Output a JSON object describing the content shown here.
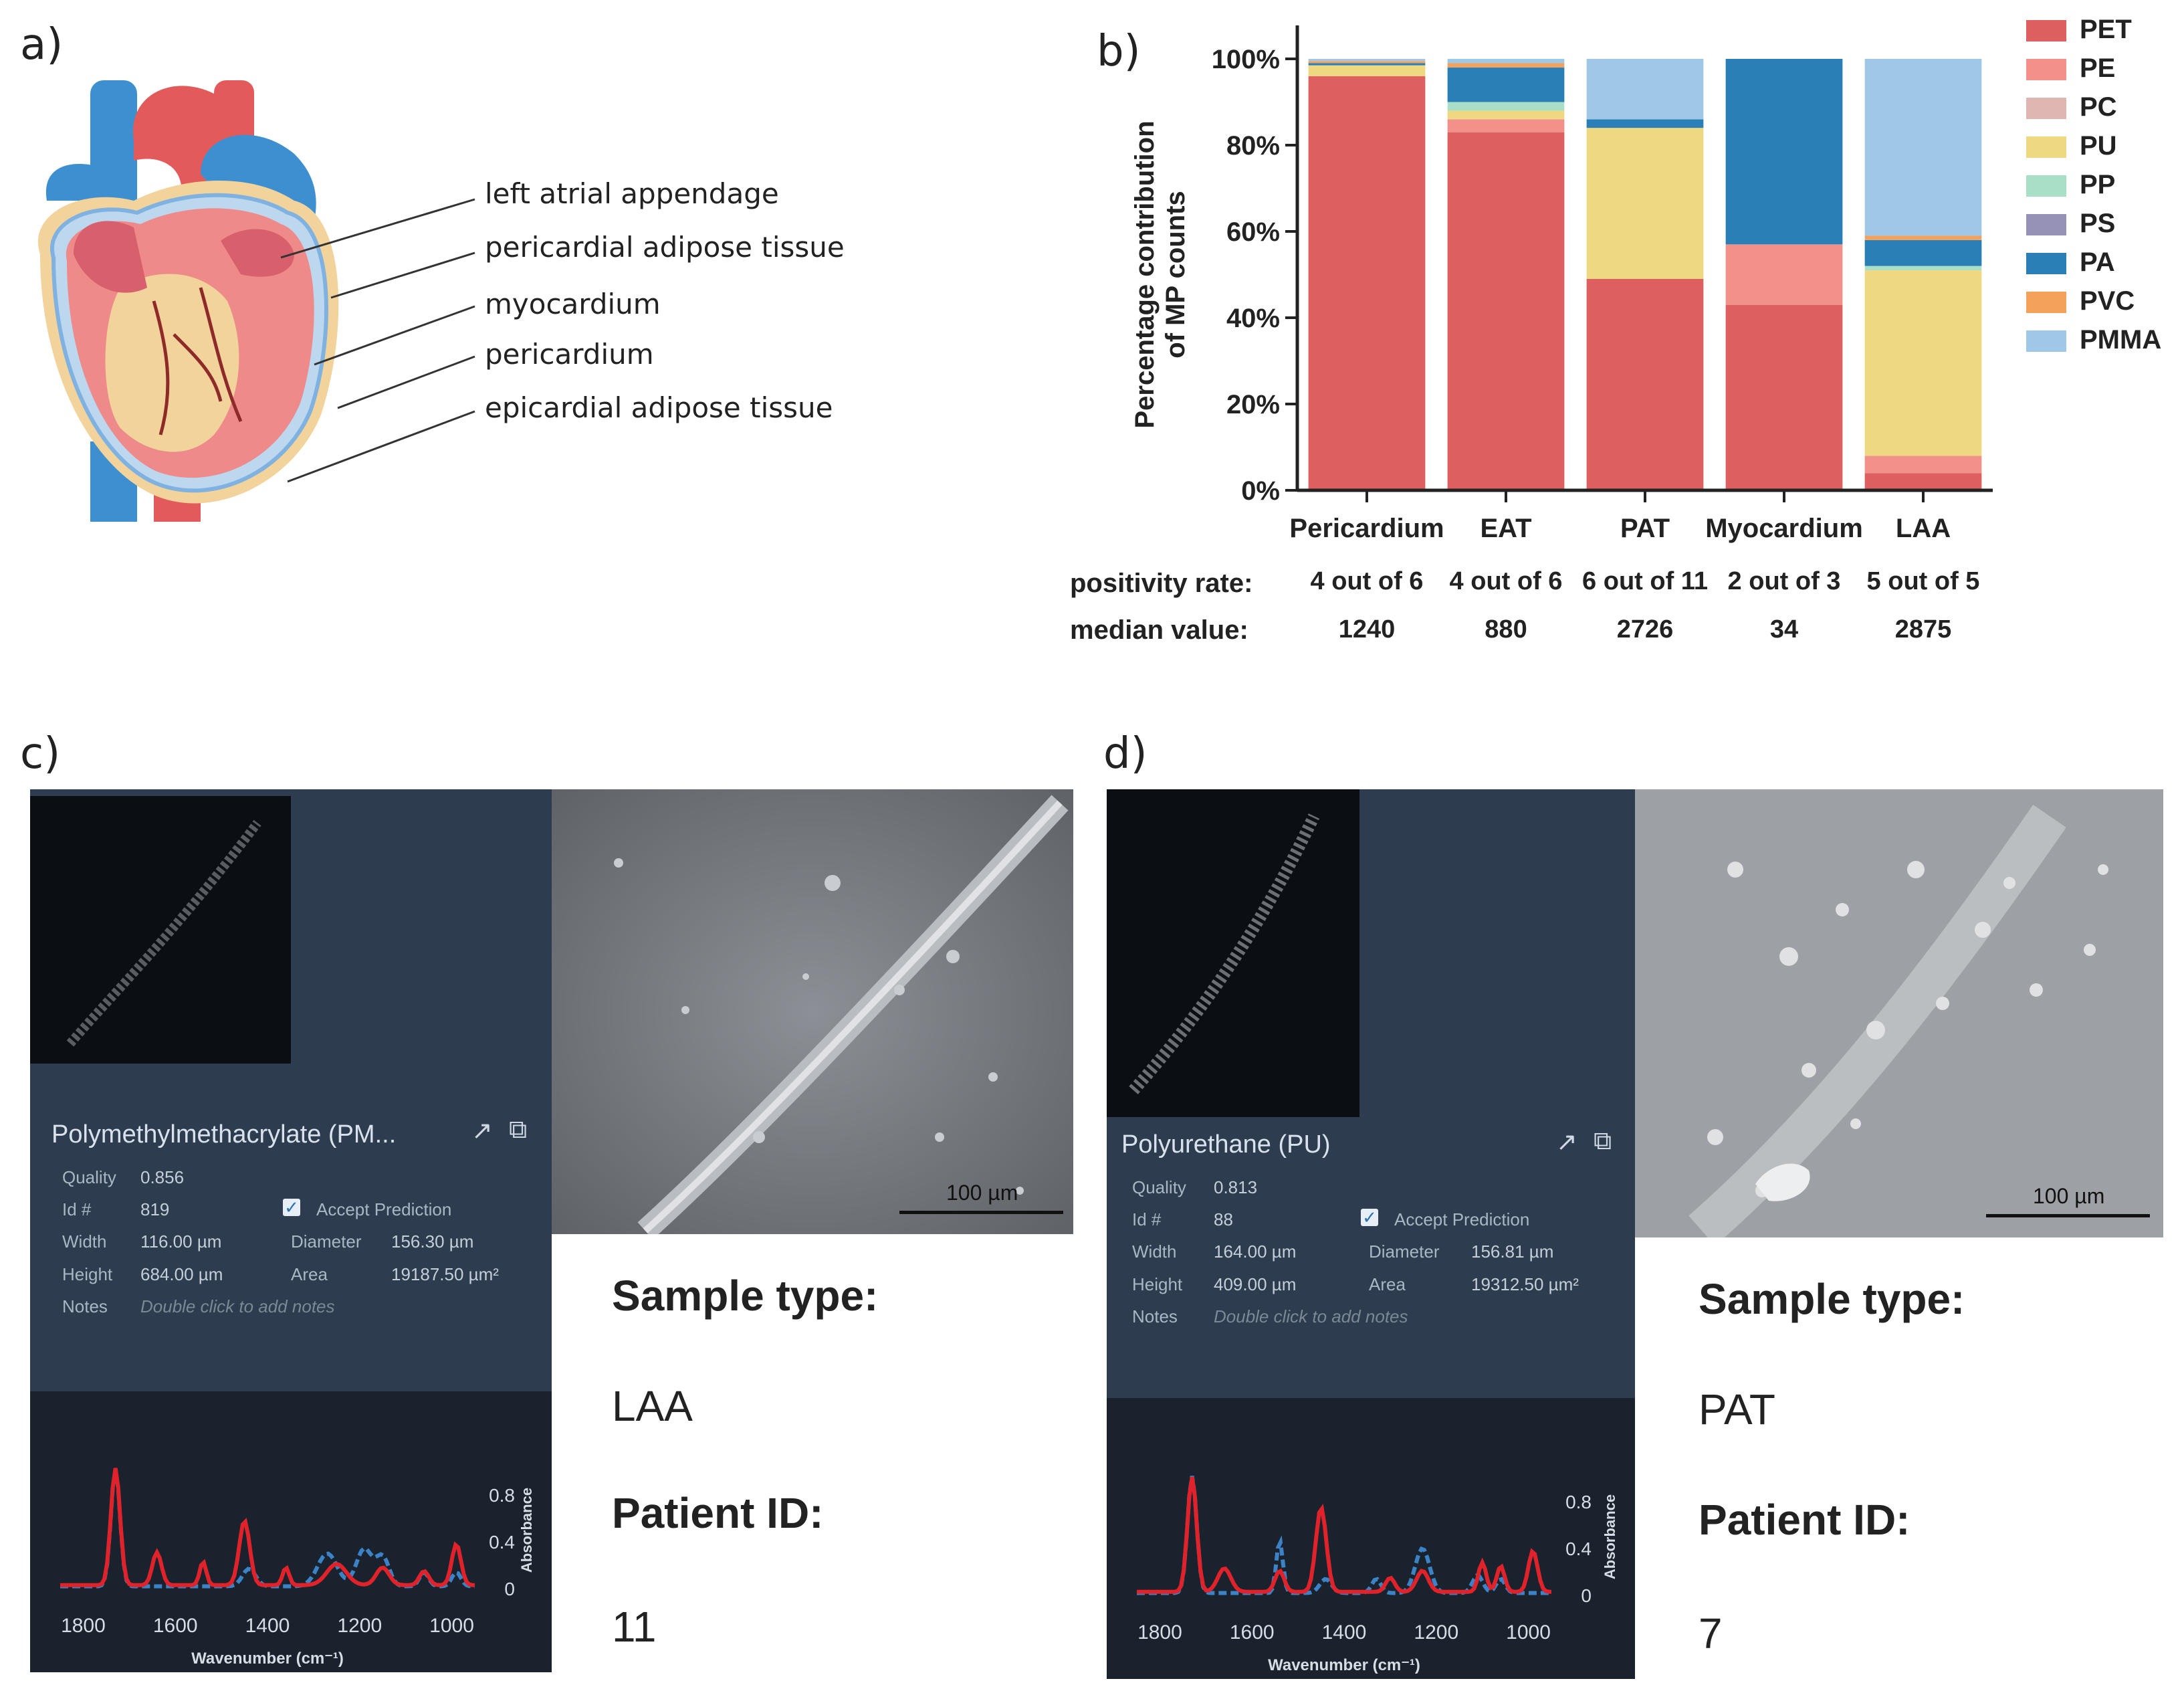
{
  "panels": {
    "a": "a)",
    "b": "b)",
    "c": "c)",
    "d": "d)"
  },
  "heart": {
    "labels": [
      "left atrial appendage",
      "pericardial adipose tissue",
      "myocardium",
      "pericardium",
      "epicardial adipose tissue"
    ]
  },
  "chart_data": {
    "type": "bar",
    "stacked": true,
    "categories": [
      "Pericardium",
      "EAT",
      "PAT",
      "Myocardium",
      "LAA"
    ],
    "ylabel": "Percentage contribution of MP counts",
    "ylabel_lines": [
      "Percentage contribution",
      "of MP counts"
    ],
    "yticks": [
      "0%",
      "20%",
      "40%",
      "60%",
      "80%",
      "100%"
    ],
    "ylim": [
      0,
      100
    ],
    "series": [
      {
        "name": "PET",
        "color": "#de5f5f",
        "values": [
          96,
          83,
          49,
          43,
          4
        ]
      },
      {
        "name": "PE",
        "color": "#f2918a",
        "values": [
          0,
          3,
          0,
          14,
          4
        ]
      },
      {
        "name": "PC",
        "color": "#dfb6b1",
        "values": [
          0,
          0,
          0,
          0,
          0
        ]
      },
      {
        "name": "PU",
        "color": "#eed882",
        "values": [
          2.5,
          2,
          35,
          0,
          43
        ]
      },
      {
        "name": "PP",
        "color": "#a9dfc6",
        "values": [
          0,
          2,
          0,
          0,
          1
        ]
      },
      {
        "name": "PS",
        "color": "#9691b6",
        "values": [
          0,
          0,
          0,
          0,
          0
        ]
      },
      {
        "name": "PA",
        "color": "#2b7fb7",
        "values": [
          0.5,
          8,
          2,
          43,
          6
        ]
      },
      {
        "name": "PVC",
        "color": "#f4a15c",
        "values": [
          0.5,
          1,
          0,
          0,
          1
        ]
      },
      {
        "name": "PMMA",
        "color": "#9fc8e6",
        "values": [
          0.5,
          1,
          14,
          0,
          41
        ]
      }
    ]
  },
  "stats": {
    "positivity_label": "positivity rate:",
    "median_label": "median value:",
    "positivity": [
      "4 out of 6",
      "4 out of 6",
      "6 out of 11",
      "2 out of 3",
      "5 out of 5"
    ],
    "median": [
      "1240",
      "880",
      "2726",
      "34",
      "2875"
    ]
  },
  "card_c": {
    "name": "Polymethylmethacrylate (PM...",
    "quality_label": "Quality",
    "quality": "0.856",
    "id_label": "Id #",
    "id": "819",
    "width_label": "Width",
    "width": "116.00 µm",
    "height_label": "Height",
    "height": "684.00 µm",
    "notes_label": "Notes",
    "notes_placeholder": "Double click to add notes",
    "accept_label": "Accept Prediction",
    "diameter_label": "Diameter",
    "diameter": "156.30 µm",
    "area_label": "Area",
    "area": "19187.50 µm²",
    "spec_yticks": [
      "0.8",
      "0.4",
      "0"
    ],
    "spec_xticks": [
      "1800",
      "1600",
      "1400",
      "1200",
      "1000"
    ],
    "spec_xlabel": "Wavenumber (cm⁻¹)",
    "spec_ylabel": "Absorbance",
    "scale": "100 µm",
    "sample_type_label": "Sample type:",
    "sample_type": "LAA",
    "patient_label": "Patient ID:",
    "patient_id": "11"
  },
  "card_d": {
    "name": "Polyurethane (PU)",
    "quality_label": "Quality",
    "quality": "0.813",
    "id_label": "Id #",
    "id": "88",
    "width_label": "Width",
    "width": "164.00 µm",
    "height_label": "Height",
    "height": "409.00 µm",
    "notes_label": "Notes",
    "notes_placeholder": "Double click to add notes",
    "accept_label": "Accept Prediction",
    "diameter_label": "Diameter",
    "diameter": "156.81 µm",
    "area_label": "Area",
    "area": "19312.50 µm²",
    "spec_yticks": [
      "0.8",
      "0.4",
      "0"
    ],
    "spec_xticks": [
      "1800",
      "1600",
      "1400",
      "1200",
      "1000"
    ],
    "spec_xlabel": "Wavenumber (cm⁻¹)",
    "spec_ylabel": "Absorbance",
    "scale": "100 µm",
    "sample_type_label": "Sample type:",
    "sample_type": "PAT",
    "patient_label": "Patient ID:",
    "patient_id": "7"
  }
}
